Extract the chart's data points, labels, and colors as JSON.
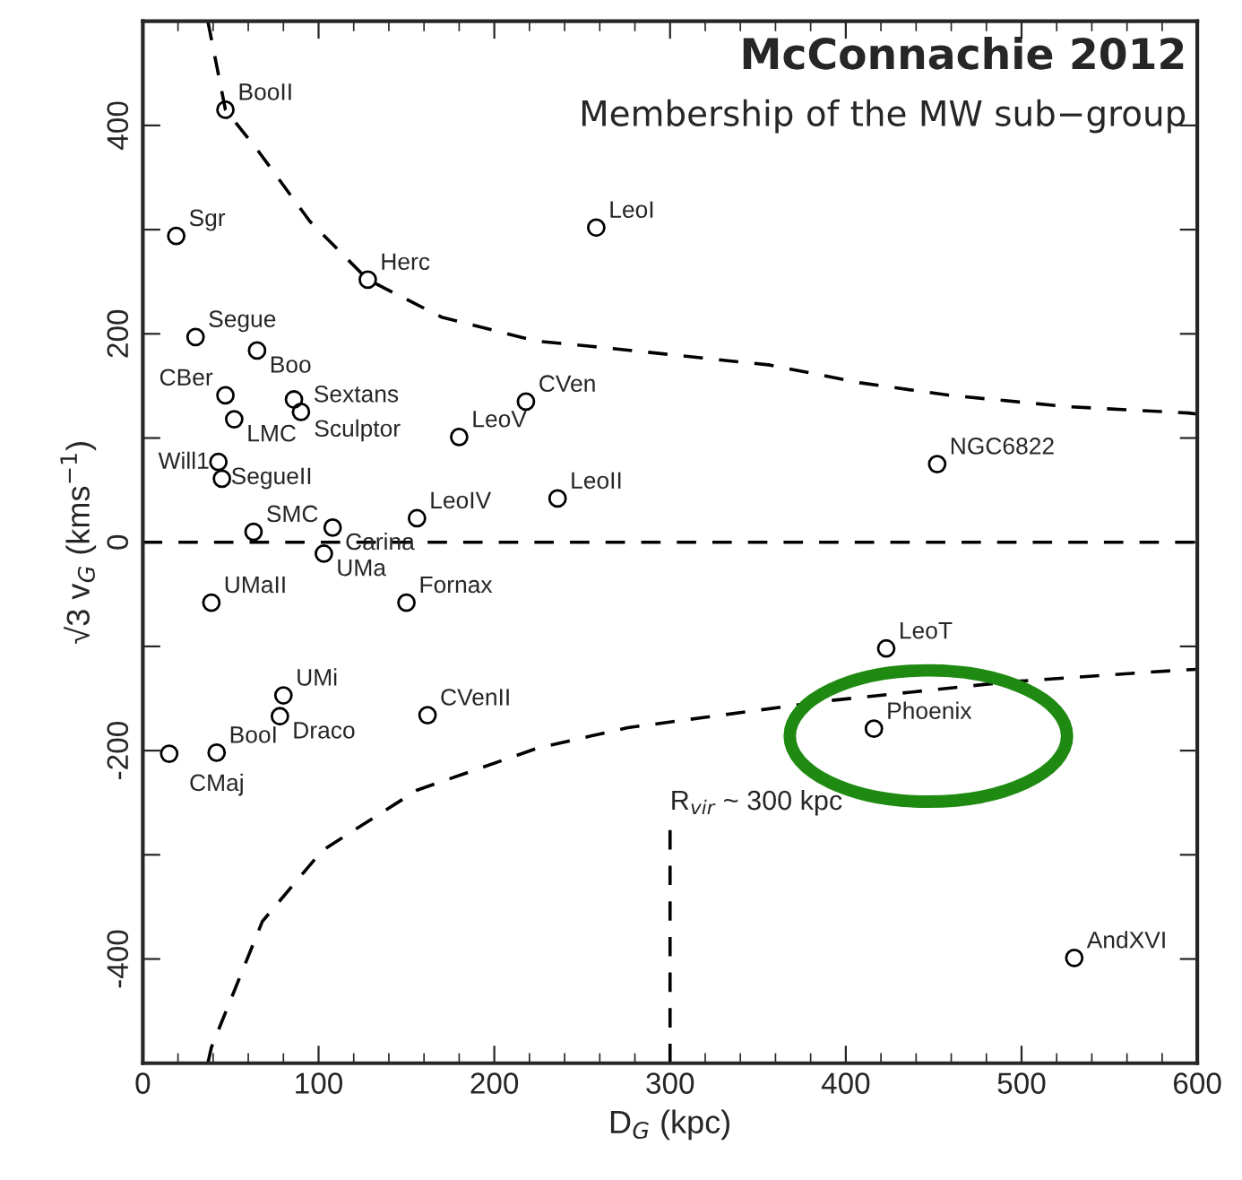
{
  "chart_data": {
    "type": "scatter",
    "xlabel": "D$_{G}$ (kpc)",
    "ylabel": "√3 v$_{G}$ (kms$^{−1}$)",
    "annotations": [
      "McConnachie 2012",
      "Membership of the MW sub−group"
    ],
    "xlim": [
      0,
      600
    ],
    "ylim": [
      -500,
      500
    ],
    "xticks": [
      0,
      100,
      200,
      300,
      400,
      500,
      600
    ],
    "yticks": [
      {
        "value": -500,
        "label": null
      },
      -400,
      {
        "value": -300,
        "label": null
      },
      -200,
      {
        "value": -100,
        "label": null
      },
      0,
      {
        "value": 100,
        "label": null
      },
      200,
      {
        "value": 300,
        "label": null
      },
      400,
      {
        "value": 500,
        "label": null
      }
    ],
    "grid": false,
    "ref_lines": [
      {
        "axis": "y",
        "value": 0,
        "line_style": "dashed",
        "color": "#000000"
      }
    ],
    "series": [
      {
        "color": "#000000",
        "marker": "circle",
        "x": [
          47,
          19,
          128,
          30,
          65,
          47,
          86,
          90,
          52,
          180,
          218,
          43,
          45,
          108,
          156,
          236,
          63,
          103,
          258,
          452,
          39,
          150,
          80,
          78,
          162,
          15,
          42,
          423,
          416,
          530
        ],
        "values": [
          415,
          294,
          252,
          197,
          184,
          141,
          137,
          125,
          118,
          101,
          135,
          77,
          61,
          14,
          23,
          42,
          10,
          -11,
          302,
          75,
          -58,
          -58,
          -147,
          -167,
          -166,
          -203,
          -202,
          -102,
          -179,
          -399
        ],
        "value_labels": [
          "BooII",
          "Sgr",
          "Herc",
          "Segue",
          "Boo",
          "CBer",
          "Sculptor",
          "Sextans",
          "LMC",
          "LeoV",
          "CVen",
          "SegueII",
          "Will1",
          "Carina",
          "LeoIV",
          "LeoII",
          "SMC",
          "UMa",
          "LeoI",
          "NGC6822",
          "UMaII",
          "Fornax",
          "UMi",
          "Draco",
          "CVenII",
          "CMaj",
          "BooI",
          "LeoT",
          "Phoenix",
          "AndXVI"
        ]
      },
      {
        "type": "line",
        "color": "#000000",
        "line_style": "dashed",
        "marker": "none",
        "x": [
          37,
          47,
          65,
          95,
          128,
          170,
          224,
          255,
          357,
          408,
          459,
          527,
          595,
          600
        ],
        "values": [
          500,
          415,
          377,
          308,
          252,
          216,
          193,
          188,
          170,
          153,
          141,
          130,
          124,
          123
        ]
      },
      {
        "type": "line",
        "color": "#000000",
        "line_style": "dashed",
        "marker": "none",
        "x": [
          37,
          39,
          68,
          102,
          156,
          224,
          255,
          276,
          391,
          493,
          588,
          600
        ],
        "values": [
          -500,
          -485,
          -364,
          -296,
          -238,
          -198,
          -186,
          -178,
          -152,
          -134,
          -123,
          -122
        ]
      },
      {
        "type": "line",
        "name": "R$_{vir}$ ~ 300 kpc",
        "color": "#000000",
        "line_style": "dashed",
        "marker": "none",
        "x": [
          300,
          300
        ],
        "values": [
          -500,
          -272
        ]
      }
    ]
  }
}
